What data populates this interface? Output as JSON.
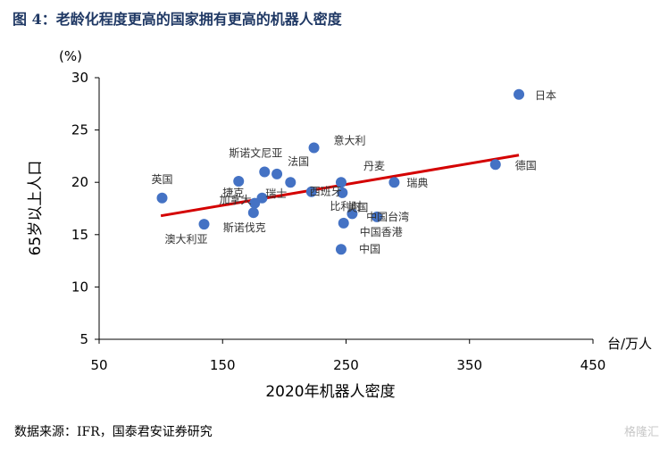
{
  "figure": {
    "title": "图 4：老龄化程度更高的国家拥有更高的机器人密度",
    "source": "数据来源：IFR，国泰君安证券研究",
    "watermark": "格隆汇"
  },
  "chart_data": {
    "type": "scatter",
    "xlabel": "2020年机器人密度",
    "xunit": "台/万人",
    "ylabel": "65岁以上人口",
    "yunit": "(%)",
    "xlim": [
      50,
      450
    ],
    "ylim": [
      5,
      30
    ],
    "xticks": [
      50,
      150,
      250,
      350,
      450
    ],
    "yticks": [
      5,
      10,
      15,
      20,
      25,
      30
    ],
    "points": [
      {
        "label": "日本",
        "x": 390,
        "y": 28.4
      },
      {
        "label": "德国",
        "x": 371,
        "y": 21.7
      },
      {
        "label": "意大利",
        "x": 224,
        "y": 23.3
      },
      {
        "label": "丹麦",
        "x": 246,
        "y": 20.0
      },
      {
        "label": "瑞典",
        "x": 289,
        "y": 20.0
      },
      {
        "label": "英国",
        "x": 101,
        "y": 18.5
      },
      {
        "label": "斯诺文尼亚",
        "x": 184,
        "y": 21.0
      },
      {
        "label": "法国",
        "x": 194,
        "y": 20.8
      },
      {
        "label": "捷克",
        "x": 163,
        "y": 20.1
      },
      {
        "label": "瑞士",
        "x": 205,
        "y": 20.0
      },
      {
        "label": "西班牙",
        "x": 222,
        "y": 19.1
      },
      {
        "label": "比利时",
        "x": 247,
        "y": 19.0
      },
      {
        "label": "加拿大",
        "x": 182,
        "y": 18.5
      },
      {
        "label": "美国",
        "x": 255,
        "y": 17.0
      },
      {
        "label": "斯诺伐克",
        "x": 175,
        "y": 17.1
      },
      {
        "label": "中国台湾",
        "x": 275,
        "y": 16.7
      },
      {
        "label": "澳大利亚",
        "x": 135,
        "y": 16.0
      },
      {
        "label": "中国香港",
        "x": 248,
        "y": 16.1
      },
      {
        "label": "中国",
        "x": 246,
        "y": 13.6
      },
      {
        "label": "荷兰",
        "x": 176,
        "y": 18.0
      }
    ],
    "trendline": {
      "x": [
        100,
        390
      ],
      "y": [
        16.8,
        22.6
      ],
      "color": "#d40000"
    },
    "marker_color": "#4472c4",
    "grid": false,
    "legend": "none"
  }
}
